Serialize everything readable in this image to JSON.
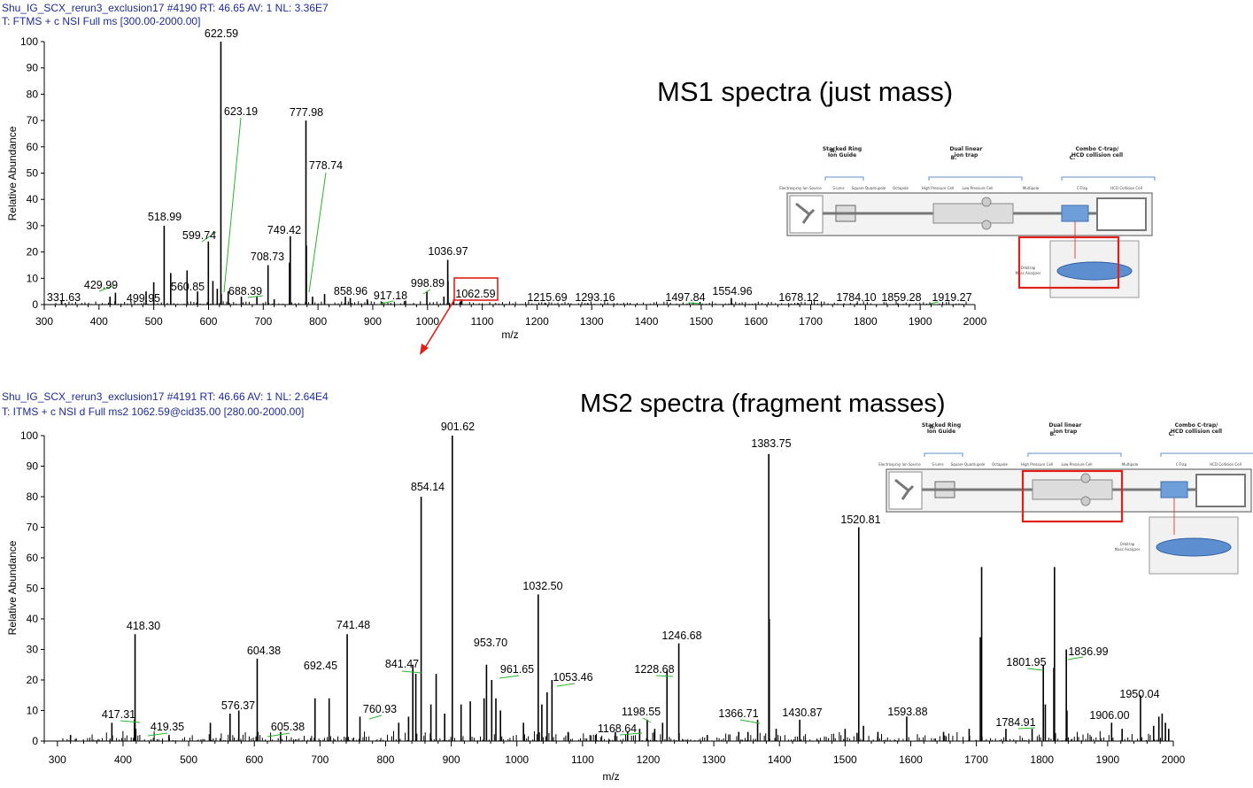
{
  "colors": {
    "header_text": "#1f2a9a",
    "peak": "#000000",
    "leader": "#2bb52b",
    "highlight": "#e0201b",
    "bracket": "#5b8fd6"
  },
  "chart_data": [
    {
      "type": "bar",
      "header": {
        "line1": "Shu_IG_SCX_rerun3_exclusion17 #4190   RT: 46.65   AV: 1   NL: 3.36E7",
        "line2": "T: FTMS + c NSI Full ms [300.00-2000.00]"
      },
      "title": "MS1 spectra (just mass)",
      "xlabel": "m/z",
      "ylabel": "Relative Abundance",
      "xlim": [
        300,
        2000
      ],
      "ylim": [
        0,
        100
      ],
      "xticks": [
        300,
        400,
        500,
        600,
        700,
        800,
        900,
        1000,
        1100,
        1200,
        1300,
        1400,
        1500,
        1600,
        1700,
        1800,
        1900,
        2000
      ],
      "yticks": [
        0,
        10,
        20,
        30,
        40,
        50,
        60,
        70,
        80,
        90,
        100
      ],
      "peaks": [
        {
          "x": 331.63,
          "y": 1.5
        },
        {
          "x": 429.99,
          "y": 4.5
        },
        {
          "x": 499.95,
          "y": 8.5
        },
        {
          "x": 518.99,
          "y": 30
        },
        {
          "x": 560.85,
          "y": 13
        },
        {
          "x": 599.74,
          "y": 24
        },
        {
          "x": 622.59,
          "y": 100
        },
        {
          "x": 623.19,
          "y": 4
        },
        {
          "x": 688.39,
          "y": 3
        },
        {
          "x": 708.73,
          "y": 15
        },
        {
          "x": 749.42,
          "y": 26
        },
        {
          "x": 777.98,
          "y": 70
        },
        {
          "x": 778.74,
          "y": 22.5
        },
        {
          "x": 858.96,
          "y": 2.5
        },
        {
          "x": 917.18,
          "y": 1
        },
        {
          "x": 998.89,
          "y": 5
        },
        {
          "x": 1036.97,
          "y": 17
        },
        {
          "x": 1062.59,
          "y": 2
        },
        {
          "x": 1215.69,
          "y": 0.5
        },
        {
          "x": 1293.16,
          "y": 0.5
        },
        {
          "x": 1497.84,
          "y": 1
        },
        {
          "x": 1554.96,
          "y": 2.5
        },
        {
          "x": 1678.12,
          "y": 0.5
        },
        {
          "x": 1784.1,
          "y": 0.5
        },
        {
          "x": 1859.28,
          "y": 0.5
        },
        {
          "x": 1919.27,
          "y": 0.5
        },
        {
          "x": 420,
          "y": 3
        },
        {
          "x": 486,
          "y": 5
        },
        {
          "x": 531,
          "y": 12
        },
        {
          "x": 580,
          "y": 5
        },
        {
          "x": 608,
          "y": 9
        },
        {
          "x": 616,
          "y": 6
        },
        {
          "x": 636,
          "y": 5
        },
        {
          "x": 660,
          "y": 3
        },
        {
          "x": 720,
          "y": 2
        },
        {
          "x": 748,
          "y": 16
        },
        {
          "x": 790,
          "y": 3
        },
        {
          "x": 812,
          "y": 4
        },
        {
          "x": 850,
          "y": 3
        },
        {
          "x": 890,
          "y": 2
        },
        {
          "x": 960,
          "y": 1.5
        },
        {
          "x": 1030,
          "y": 3
        },
        {
          "x": 1037.5,
          "y": 9
        },
        {
          "x": 1048,
          "y": 2
        },
        {
          "x": 1060,
          "y": 1.2
        }
      ],
      "labels": [
        "331.63",
        "429.99",
        "499.95",
        "518.99",
        "560.85",
        "599.74",
        "622.59",
        "623.19",
        "688.39",
        "708.73",
        "749.42",
        "777.98",
        "778.74",
        "858.96",
        "917.18",
        "998.89",
        "1036.97",
        "1062.59",
        "1215.69",
        "1293.16",
        "1497.84",
        "1554.96",
        "1678.12",
        "1784.10",
        "1859.28",
        "1919.27"
      ]
    },
    {
      "type": "bar",
      "header": {
        "line1": "Shu_IG_SCX_rerun3_exclusion17 #4191   RT: 46.66   AV: 1   NL: 2.64E4",
        "line2": "T: ITMS + c NSI d Full ms2 1062.59@cid35.00 [280.00-2000.00]"
      },
      "title": "MS2 spectra (fragment masses)",
      "xlabel": "m/z",
      "ylabel": "Relative Abundance",
      "xlim": [
        280,
        2000
      ],
      "ylim": [
        0,
        100
      ],
      "xticks": [
        300,
        400,
        500,
        600,
        700,
        800,
        900,
        1000,
        1100,
        1200,
        1300,
        1400,
        1500,
        1600,
        1700,
        1800,
        1900,
        2000
      ],
      "yticks": [
        0,
        10,
        20,
        30,
        40,
        50,
        60,
        70,
        80,
        90,
        100
      ],
      "peaks": [
        {
          "x": 417.31,
          "y": 7
        },
        {
          "x": 418.3,
          "y": 35
        },
        {
          "x": 419.35,
          "y": 4
        },
        {
          "x": 576.37,
          "y": 10
        },
        {
          "x": 604.38,
          "y": 27
        },
        {
          "x": 605.38,
          "y": 3
        },
        {
          "x": 692.45,
          "y": 14
        },
        {
          "x": 741.48,
          "y": 35
        },
        {
          "x": 760.93,
          "y": 8
        },
        {
          "x": 841.47,
          "y": 25
        },
        {
          "x": 854.14,
          "y": 80
        },
        {
          "x": 901.62,
          "y": 100
        },
        {
          "x": 953.7,
          "y": 25
        },
        {
          "x": 961.65,
          "y": 20
        },
        {
          "x": 1032.5,
          "y": 48
        },
        {
          "x": 1053.46,
          "y": 20
        },
        {
          "x": 1168.64,
          "y": 3
        },
        {
          "x": 1198.55,
          "y": 7
        },
        {
          "x": 1228.68,
          "y": 23
        },
        {
          "x": 1246.68,
          "y": 32
        },
        {
          "x": 1366.71,
          "y": 7
        },
        {
          "x": 1383.75,
          "y": 94
        },
        {
          "x": 1430.87,
          "y": 7
        },
        {
          "x": 1520.81,
          "y": 70
        },
        {
          "x": 1593.88,
          "y": 8
        },
        {
          "x": 1784.91,
          "y": 4
        },
        {
          "x": 1801.95,
          "y": 25
        },
        {
          "x": 1836.99,
          "y": 30
        },
        {
          "x": 1906.0,
          "y": 6
        },
        {
          "x": 1950.04,
          "y": 15
        },
        {
          "x": 1384.5,
          "y": 40
        },
        {
          "x": 1708,
          "y": 57
        },
        {
          "x": 1706,
          "y": 34
        },
        {
          "x": 1819,
          "y": 57
        },
        {
          "x": 1818,
          "y": 24
        },
        {
          "x": 1805,
          "y": 12
        },
        {
          "x": 1838,
          "y": 10
        },
        {
          "x": 1046,
          "y": 16
        },
        {
          "x": 1038,
          "y": 12
        },
        {
          "x": 968,
          "y": 14
        },
        {
          "x": 975,
          "y": 10
        },
        {
          "x": 950,
          "y": 14
        },
        {
          "x": 929,
          "y": 13
        },
        {
          "x": 915,
          "y": 12
        },
        {
          "x": 877,
          "y": 22
        },
        {
          "x": 869,
          "y": 12
        },
        {
          "x": 846,
          "y": 22
        },
        {
          "x": 835,
          "y": 8
        },
        {
          "x": 820,
          "y": 6
        },
        {
          "x": 714,
          "y": 14
        },
        {
          "x": 563,
          "y": 9
        },
        {
          "x": 383,
          "y": 6
        },
        {
          "x": 533,
          "y": 6
        },
        {
          "x": 640,
          "y": 3
        },
        {
          "x": 1010,
          "y": 6
        },
        {
          "x": 1078,
          "y": 3
        },
        {
          "x": 1120,
          "y": 2
        },
        {
          "x": 1150,
          "y": 3
        },
        {
          "x": 1187,
          "y": 4
        },
        {
          "x": 1210,
          "y": 4
        },
        {
          "x": 1290,
          "y": 2
        },
        {
          "x": 1338,
          "y": 3
        },
        {
          "x": 1352,
          "y": 3
        },
        {
          "x": 1395,
          "y": 4
        },
        {
          "x": 1500,
          "y": 4
        },
        {
          "x": 1550,
          "y": 3
        },
        {
          "x": 1650,
          "y": 3
        },
        {
          "x": 1689,
          "y": 4
        },
        {
          "x": 1745,
          "y": 4
        },
        {
          "x": 1922,
          "y": 4
        },
        {
          "x": 1970,
          "y": 5
        },
        {
          "x": 1978,
          "y": 8
        },
        {
          "x": 1983,
          "y": 9
        },
        {
          "x": 1988,
          "y": 6
        },
        {
          "x": 1993,
          "y": 4
        },
        {
          "x": 320,
          "y": 2
        },
        {
          "x": 470,
          "y": 2
        },
        {
          "x": 890,
          "y": 9
        },
        {
          "x": 1222,
          "y": 6
        },
        {
          "x": 1528,
          "y": 5
        }
      ],
      "labels": [
        "417.31",
        "418.30",
        "419.35",
        "576.37",
        "604.38",
        "605.38",
        "692.45",
        "741.48",
        "760.93",
        "841.47",
        "854.14",
        "901.62",
        "953.70",
        "961.65",
        "1032.50",
        "1053.46",
        "1168.64",
        "1198.55",
        "1228.68",
        "1246.68",
        "1366.71",
        "1383.75",
        "1430.87",
        "1520.81",
        "1593.88",
        "1784.91",
        "1801.95",
        "1836.99",
        "1906.00",
        "1950.04"
      ]
    }
  ],
  "diagram": {
    "sections": [
      "A.",
      "Stacked Ring",
      "Ion Guide",
      "B.",
      "Dual linear",
      "ion trap",
      "C.",
      "Combo C-trap/",
      "HCD collision cell"
    ],
    "components": [
      "Electrospray Ion Source",
      "S-Lens",
      "Square Quadrupole",
      "Octapole",
      "High Pressure Cell",
      "Low Pressure Cell",
      "Multipole",
      "C-Trap",
      "HCD Collision Cell"
    ],
    "analyzer": [
      "Orbitrap",
      "Mass Analyzer"
    ]
  }
}
